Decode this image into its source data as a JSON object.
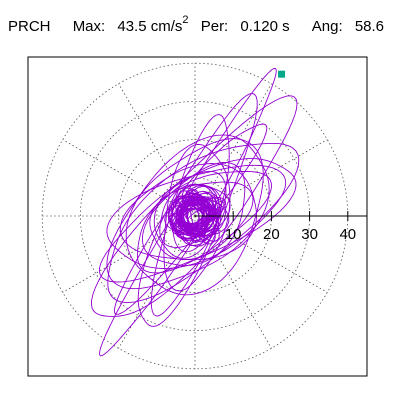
{
  "header": {
    "station": "PRCH",
    "max_label": "Max:",
    "max_value": "43.5",
    "max_unit": "cm/s",
    "max_unit_exp": "2",
    "per_label": "Per:",
    "per_value": "0.120",
    "per_unit": "s",
    "ang_label": "Ang:",
    "ang_value": "58.6"
  },
  "chart_data": {
    "type": "polar-orbit",
    "title": "",
    "radial_ticks": [
      10,
      20,
      30,
      40
    ],
    "radial_tick_labels": [
      "10",
      "20",
      "30",
      "40"
    ],
    "grid": "dotted concentric circles and radial spokes every 30°",
    "trace_color": "#9400d3",
    "peak_marker_color": "#00a88a",
    "peak": {
      "amplitude": 43.5,
      "angle_deg": 58.6
    },
    "orbit_loops": [
      {
        "a": 43.0,
        "b": 4.0,
        "theta": 58.6
      },
      {
        "a": 38.0,
        "b": 9.0,
        "theta": 48.0
      },
      {
        "a": 33.0,
        "b": 7.0,
        "theta": 65.0
      },
      {
        "a": 30.0,
        "b": 12.0,
        "theta": 38.0
      },
      {
        "a": 28.0,
        "b": 10.0,
        "theta": 28.0
      },
      {
        "a": 25.0,
        "b": 14.0,
        "theta": 42.0
      },
      {
        "a": 27.0,
        "b": 6.0,
        "theta": 72.0
      },
      {
        "a": 24.0,
        "b": 11.0,
        "theta": 20.0
      },
      {
        "a": 22.0,
        "b": 15.0,
        "theta": 55.0
      },
      {
        "a": 20.0,
        "b": 9.0,
        "theta": 33.0
      },
      {
        "a": 31.0,
        "b": 5.0,
        "theta": 52.0
      },
      {
        "a": 18.0,
        "b": 12.0,
        "theta": 15.0
      },
      {
        "a": 19.0,
        "b": 8.0,
        "theta": 80.0
      },
      {
        "a": 16.0,
        "b": 10.0,
        "theta": 45.0
      },
      {
        "a": 14.0,
        "b": 9.0,
        "theta": 25.0
      },
      {
        "a": 12.0,
        "b": 8.0,
        "theta": 60.0
      },
      {
        "a": 10.0,
        "b": 7.0,
        "theta": 35.0
      },
      {
        "a": 9.0,
        "b": 6.0,
        "theta": 70.0
      },
      {
        "a": 8.0,
        "b": 5.0,
        "theta": 10.0
      },
      {
        "a": 7.0,
        "b": 5.0,
        "theta": 50.0
      },
      {
        "a": 6.0,
        "b": 4.0,
        "theta": 30.0
      },
      {
        "a": 5.0,
        "b": 4.0,
        "theta": 85.0
      },
      {
        "a": 4.0,
        "b": 3.0,
        "theta": 40.0
      },
      {
        "a": 3.5,
        "b": 2.5,
        "theta": 65.0
      },
      {
        "a": 3.0,
        "b": 2.0,
        "theta": 20.0
      }
    ]
  }
}
